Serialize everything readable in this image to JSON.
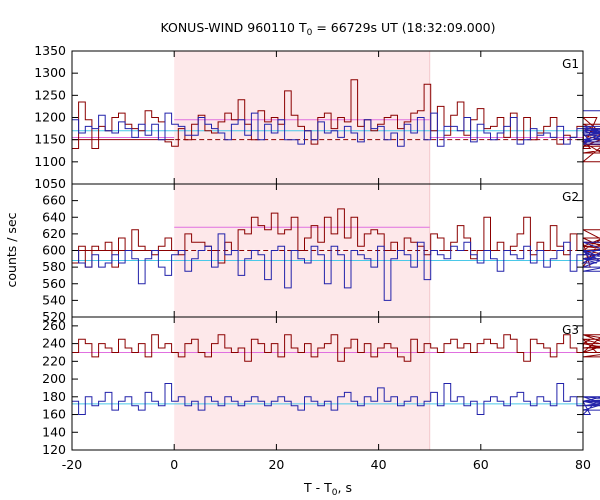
{
  "title_main": "KONUS-WIND 960110 T",
  "title_sub": "0",
  "title_rest": " = 66729s UT (18:32:09.000)",
  "xlabel_main": "T - T",
  "xlabel_sub": "0",
  "xlabel_rest": ", s",
  "ylabel": "counts / sec",
  "colors": {
    "highlight": "#fde8ea",
    "series_red": "#8b0000",
    "series_blue": "#2222aa",
    "bg_red": "#8b0000",
    "bg_blue": "#4ac8e8",
    "bg_pink": "#e070e0",
    "tick": "#000000"
  },
  "chart_data": {
    "type": "line",
    "step": true,
    "xlim": [
      -20,
      80
    ],
    "x_ticks": [
      -20,
      0,
      20,
      40,
      60,
      80
    ],
    "highlight_interval": [
      0,
      50
    ],
    "bin_width": 1.3,
    "panels": [
      {
        "label": "G1",
        "ylim": [
          1050,
          1350
        ],
        "y_ticks": [
          1050,
          1100,
          1150,
          1200,
          1250,
          1300,
          1350
        ],
        "series": [
          {
            "color": "red",
            "x0": -20,
            "values": [
              1130,
              1235,
              1195,
              1130,
              1180,
              1170,
              1200,
              1210,
              1185,
              1175,
              1170,
              1215,
              1200,
              1190,
              1145,
              1135,
              1175,
              1150,
              1185,
              1205,
              1170,
              1165,
              1190,
              1210,
              1195,
              1240,
              1185,
              1150,
              1215,
              1190,
              1200,
              1185,
              1260,
              1205,
              1180,
              1170,
              1140,
              1200,
              1210,
              1175,
              1200,
              1190,
              1285,
              1180,
              1195,
              1170,
              1185,
              1200,
              1205,
              1175,
              1190,
              1210,
              1215,
              1275,
              1170,
              1225,
              1160,
              1205,
              1235,
              1160,
              1195,
              1220,
              1175,
              1180,
              1200,
              1155,
              1210,
              1150,
              1200,
              1150,
              1165,
              1180,
              1200,
              1140,
              1160,
              1155,
              1180,
              1150,
              1130,
              1200,
              1160,
              1145,
              1100,
              1175,
              1140,
              1135,
              1185,
              1120,
              1145
            ]
          },
          {
            "color": "blue",
            "x0": -20,
            "values": [
              1195,
              1165,
              1180,
              1175,
              1205,
              1170,
              1165,
              1190,
              1175,
              1155,
              1185,
              1160,
              1185,
              1150,
              1210,
              1185,
              1180,
              1160,
              1160,
              1200,
              1185,
              1175,
              1165,
              1150,
              1185,
              1195,
              1160,
              1210,
              1150,
              1185,
              1165,
              1195,
              1150,
              1150,
              1140,
              1170,
              1150,
              1190,
              1165,
              1170,
              1155,
              1180,
              1165,
              1145,
              1195,
              1175,
              1180,
              1150,
              1165,
              1135,
              1185,
              1165,
              1200,
              1150,
              1210,
              1135,
              1180,
              1180,
              1170,
              1200,
              1145,
              1185,
              1165,
              1150,
              1165,
              1180,
              1200,
              1140,
              1150,
              1175,
              1160,
              1165,
              1155,
              1180,
              1140,
              1155,
              1175,
              1165,
              1145,
              1160,
              1165,
              1170,
              1150,
              1170,
              1180,
              1145,
              1175,
              1140,
              1215
            ]
          }
        ],
        "backgrounds": [
          {
            "color": "bg_pink",
            "segments": [
              [
                -20,
                1155,
                0,
                1155
              ],
              [
                0,
                1195,
                50,
                1195
              ],
              [
                50,
                1155,
                80,
                1155
              ]
            ]
          },
          {
            "color": "bg_blue",
            "segments": [
              [
                -20,
                1170,
                80,
                1170
              ]
            ]
          },
          {
            "color": "bg_red",
            "segments": [
              [
                -20,
                1150,
                80,
                1150
              ]
            ],
            "dashed_from": 0
          }
        ]
      },
      {
        "label": "G2",
        "ylim": [
          520,
          680
        ],
        "y_ticks": [
          520,
          540,
          560,
          580,
          600,
          620,
          640,
          660
        ],
        "series": [
          {
            "color": "red",
            "x0": -20,
            "values": [
              585,
              605,
              580,
              605,
              600,
              610,
              580,
              615,
              600,
              625,
              605,
              600,
              595,
              605,
              615,
              600,
              595,
              620,
              610,
              610,
              605,
              600,
              585,
              610,
              600,
              625,
              620,
              640,
              630,
              625,
              645,
              620,
              625,
              640,
              600,
              615,
              630,
              610,
              640,
              620,
              650,
              615,
              640,
              605,
              620,
              625,
              620,
              600,
              610,
              600,
              615,
              610,
              605,
              595,
              620,
              615,
              600,
              610,
              630,
              615,
              590,
              600,
              640,
              600,
              610,
              600,
              605,
              620,
              640,
              595,
              610,
              600,
              630,
              605,
              595,
              620,
              600,
              610,
              580,
              605,
              615,
              600,
              625,
              600,
              590,
              610,
              600,
              605,
              595
            ]
          },
          {
            "color": "blue",
            "x0": -20,
            "values": [
              600,
              585,
              580,
              595,
              580,
              585,
              595,
              585,
              600,
              590,
              560,
              590,
              600,
              580,
              570,
              595,
              600,
              575,
              590,
              600,
              605,
              580,
              620,
              595,
              600,
              570,
              590,
              600,
              595,
              565,
              600,
              605,
              555,
              600,
              590,
              585,
              605,
              595,
              560,
              605,
              595,
              555,
              600,
              595,
              590,
              580,
              605,
              540,
              590,
              600,
              595,
              580,
              610,
              565,
              600,
              595,
              590,
              605,
              600,
              610,
              595,
              585,
              600,
              590,
              575,
              600,
              595,
              590,
              605,
              585,
              600,
              580,
              590,
              600,
              610,
              575,
              595,
              600,
              590,
              585,
              600,
              580,
              595,
              610,
              590,
              600,
              575,
              590,
              580
            ]
          }
        ],
        "backgrounds": [
          {
            "color": "bg_pink",
            "segments": [
              [
                -20,
                600,
                0,
                600
              ],
              [
                0,
                628,
                50,
                628
              ],
              [
                50,
                600,
                80,
                600
              ]
            ]
          },
          {
            "color": "bg_blue",
            "segments": [
              [
                -20,
                588,
                80,
                588
              ]
            ]
          },
          {
            "color": "bg_red",
            "segments": [
              [
                -20,
                600,
                80,
                600
              ]
            ],
            "dashed_from": 0
          }
        ]
      },
      {
        "label": "G3",
        "ylim": [
          120,
          270
        ],
        "y_ticks": [
          120,
          140,
          160,
          180,
          200,
          220,
          240,
          260
        ],
        "series": [
          {
            "color": "red",
            "x0": -20,
            "values": [
              230,
              245,
              240,
              225,
              240,
              235,
              230,
              245,
              235,
              230,
              240,
              225,
              250,
              235,
              240,
              230,
              225,
              240,
              245,
              230,
              225,
              240,
              250,
              235,
              230,
              235,
              220,
              245,
              240,
              230,
              240,
              225,
              250,
              235,
              230,
              240,
              225,
              235,
              240,
              250,
              220,
              235,
              245,
              230,
              240,
              225,
              235,
              240,
              235,
              225,
              220,
              245,
              230,
              240,
              235,
              230,
              240,
              245,
              235,
              240,
              230,
              240,
              245,
              240,
              235,
              250,
              245,
              230,
              220,
              245,
              240,
              235,
              225,
              240,
              250,
              235,
              230,
              240,
              245,
              230,
              250,
              245,
              235,
              240,
              230,
              250,
              225,
              235,
              240
            ]
          },
          {
            "color": "blue",
            "x0": -20,
            "values": [
              175,
              160,
              180,
              170,
              175,
              185,
              165,
              175,
              180,
              170,
              165,
              185,
              175,
              170,
              195,
              175,
              180,
              170,
              175,
              165,
              180,
              175,
              170,
              180,
              175,
              170,
              175,
              180,
              175,
              170,
              175,
              180,
              175,
              170,
              165,
              180,
              175,
              170,
              175,
              165,
              180,
              185,
              175,
              170,
              180,
              175,
              190,
              175,
              180,
              170,
              175,
              180,
              170,
              175,
              185,
              170,
              195,
              175,
              180,
              170,
              175,
              160,
              175,
              180,
              175,
              170,
              180,
              185,
              175,
              170,
              180,
              175,
              170,
              195,
              175,
              180,
              170,
              175,
              160,
              175,
              180,
              170,
              175,
              165,
              180,
              175,
              170,
              175,
              180
            ]
          }
        ],
        "backgrounds": [
          {
            "color": "bg_pink",
            "segments": [
              [
                -20,
                230,
                80,
                230
              ]
            ]
          },
          {
            "color": "bg_blue",
            "segments": [
              [
                -20,
                172,
                80,
                172
              ]
            ]
          }
        ]
      }
    ]
  }
}
